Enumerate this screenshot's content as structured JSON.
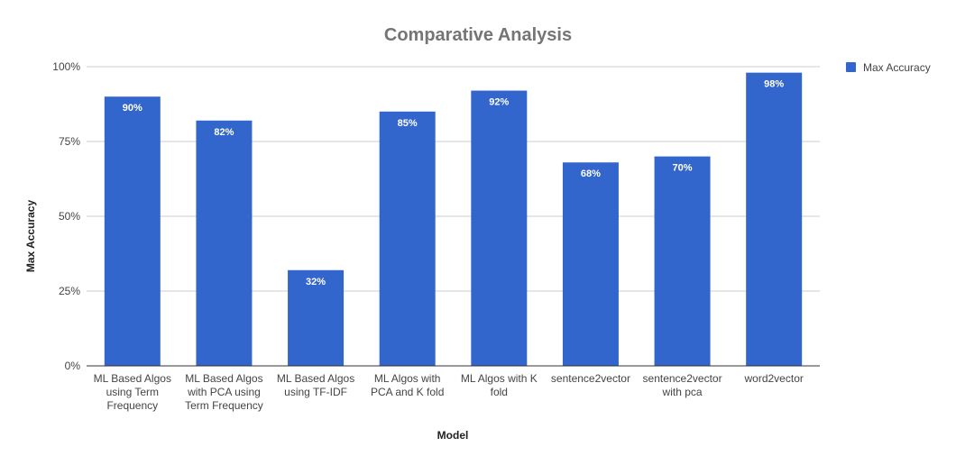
{
  "chart_data": {
    "type": "bar",
    "title": "Comparative Analysis",
    "xlabel": "Model",
    "ylabel": "Max Accuracy",
    "ylim": [
      0,
      100
    ],
    "yticks": [
      "0%",
      "25%",
      "50%",
      "75%",
      "100%"
    ],
    "ytick_values": [
      0,
      25,
      50,
      75,
      100
    ],
    "categories": [
      [
        "ML Based Algos",
        "using Term",
        "Frequency"
      ],
      [
        "ML Based Algos",
        "with PCA using",
        "Term Frequency"
      ],
      [
        "ML Based Algos",
        "using TF-IDF"
      ],
      [
        "ML Algos with",
        "PCA and K fold"
      ],
      [
        "ML Algos with K",
        "fold"
      ],
      [
        "sentence2vector"
      ],
      [
        "sentence2vector",
        "with pca"
      ],
      [
        "word2vector"
      ]
    ],
    "series": [
      {
        "name": "Max Accuracy",
        "color": "#3366cc",
        "values": [
          90,
          82,
          32,
          85,
          92,
          68,
          70,
          98
        ],
        "labels": [
          "90%",
          "82%",
          "32%",
          "85%",
          "92%",
          "68%",
          "70%",
          "98%"
        ]
      }
    ],
    "grid": true,
    "legend": "top-right"
  }
}
